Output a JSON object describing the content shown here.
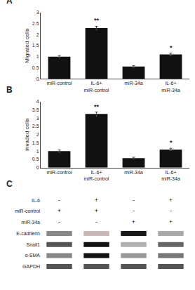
{
  "chart_data": [
    {
      "type": "bar",
      "title": "A",
      "categories": [
        "miR-control",
        "IL-6+miR-control",
        "miR-34a",
        "IL-6+miR-34a"
      ],
      "values": [
        1.0,
        2.3,
        0.55,
        1.1
      ],
      "errors": [
        0.05,
        0.08,
        0.04,
        0.06
      ],
      "ylim": [
        0,
        3.0
      ],
      "yticks": [
        0,
        0.5,
        1,
        1.5,
        2,
        2.5,
        3
      ],
      "ylabel": "Migrated cells",
      "color": "#111111",
      "grid": false,
      "annotations": [
        {
          "category": "IL-6+miR-control",
          "text": "**"
        },
        {
          "category": "IL-6+miR-34a",
          "text": "*"
        }
      ]
    },
    {
      "type": "bar",
      "title": "B",
      "categories": [
        "miR-control",
        "IL-6+miR-control",
        "miR-34a",
        "IL-6+miR-34a"
      ],
      "values": [
        1.0,
        3.25,
        0.58,
        1.1
      ],
      "errors": [
        0.07,
        0.12,
        0.05,
        0.07
      ],
      "ylim": [
        0,
        4.0
      ],
      "yticks": [
        0,
        0.5,
        1,
        1.5,
        2,
        2.5,
        3,
        3.5,
        4
      ],
      "ylabel": "Invaded cells",
      "color": "#111111",
      "grid": false,
      "annotations": [
        {
          "category": "IL-6+miR-control",
          "text": "**"
        },
        {
          "category": "IL-6+miR-34a",
          "text": "*"
        }
      ]
    },
    {
      "type": "blot",
      "title": "C",
      "tick_labels": "y",
      "rows": [
        {
          "name": "IL-6",
          "values": [
            "-",
            "+",
            "-",
            "+"
          ]
        },
        {
          "name": "miR-control",
          "values": [
            "+",
            "+",
            "-",
            "-"
          ]
        },
        {
          "name": "miR-34a",
          "values": [
            "-",
            "-",
            "+",
            "+"
          ]
        }
      ],
      "series": [
        {
          "name": "E-cadherin",
          "colors": [
            "#888888",
            "#c8b8b8",
            "#1a1a1a",
            "#aaaaaa"
          ]
        },
        {
          "name": "Snail1",
          "colors": [
            "#555555",
            "#111111",
            "#b0b0b0",
            "#666666"
          ]
        },
        {
          "name": "α-SMA",
          "colors": [
            "#888888",
            "#111111",
            "#999999",
            "#777777"
          ]
        },
        {
          "name": "GAPDH",
          "colors": [
            "#555555",
            "#555555",
            "#555555",
            "#555555"
          ]
        }
      ]
    }
  ]
}
